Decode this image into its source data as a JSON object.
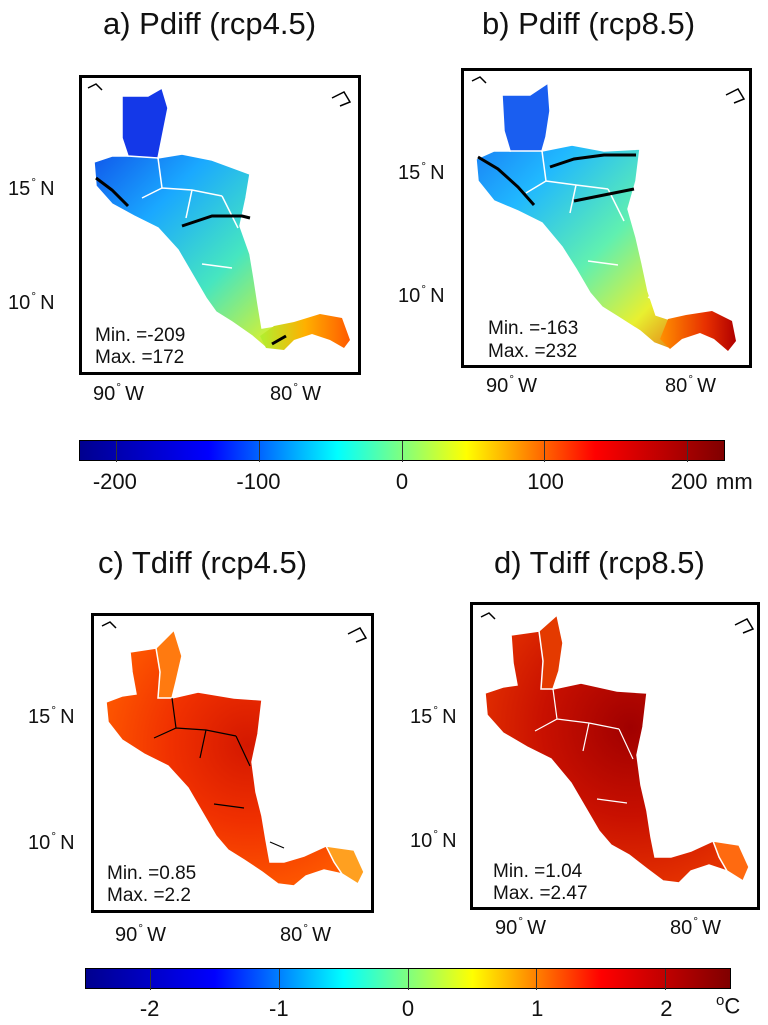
{
  "panels": [
    {
      "id": "a",
      "title": "a) Pdiff (rcp4.5)",
      "lat_labels": [
        "15",
        "10"
      ],
      "lat_hemi": "N",
      "lon_labels": [
        "90",
        "80"
      ],
      "lon_hemi": "W",
      "min_label": "Min. =-209",
      "max_label": "Max. =172",
      "field": "precipitation-change",
      "scenario": "rcp4.5"
    },
    {
      "id": "b",
      "title": "b) Pdiff (rcp8.5)",
      "lat_labels": [
        "15",
        "10"
      ],
      "lat_hemi": "N",
      "lon_labels": [
        "90",
        "80"
      ],
      "lon_hemi": "W",
      "min_label": "Min. =-163",
      "max_label": "Max. =232",
      "field": "precipitation-change",
      "scenario": "rcp8.5"
    },
    {
      "id": "c",
      "title": "c) Tdiff (rcp4.5)",
      "lat_labels": [
        "15",
        "10"
      ],
      "lat_hemi": "N",
      "lon_labels": [
        "90",
        "80"
      ],
      "lon_hemi": "W",
      "min_label": "Min. =0.85",
      "max_label": "Max. =2.2",
      "field": "temperature-change",
      "scenario": "rcp4.5"
    },
    {
      "id": "d",
      "title": "d) Tdiff (rcp8.5)",
      "lat_labels": [
        "15",
        "10"
      ],
      "lat_hemi": "N",
      "lon_labels": [
        "90",
        "80"
      ],
      "lon_hemi": "W",
      "min_label": "Min. =1.04",
      "max_label": "Max. =2.47",
      "field": "temperature-change",
      "scenario": "rcp8.5"
    }
  ],
  "colorbars": {
    "precip": {
      "ticks": [
        "-200",
        "-100",
        "0",
        "100",
        "200"
      ],
      "unit": "mm",
      "range": [
        -225,
        225
      ]
    },
    "temp": {
      "ticks": [
        "-2",
        "-1",
        "0",
        "1",
        "2"
      ],
      "unit_sup": "o",
      "unit": "C",
      "range": [
        -2.5,
        2.5
      ]
    }
  },
  "colormap": "jet",
  "colormap_stops": [
    "#00008f",
    "#0000ff",
    "#00ffff",
    "#ffff00",
    "#ff0000",
    "#800000"
  ]
}
